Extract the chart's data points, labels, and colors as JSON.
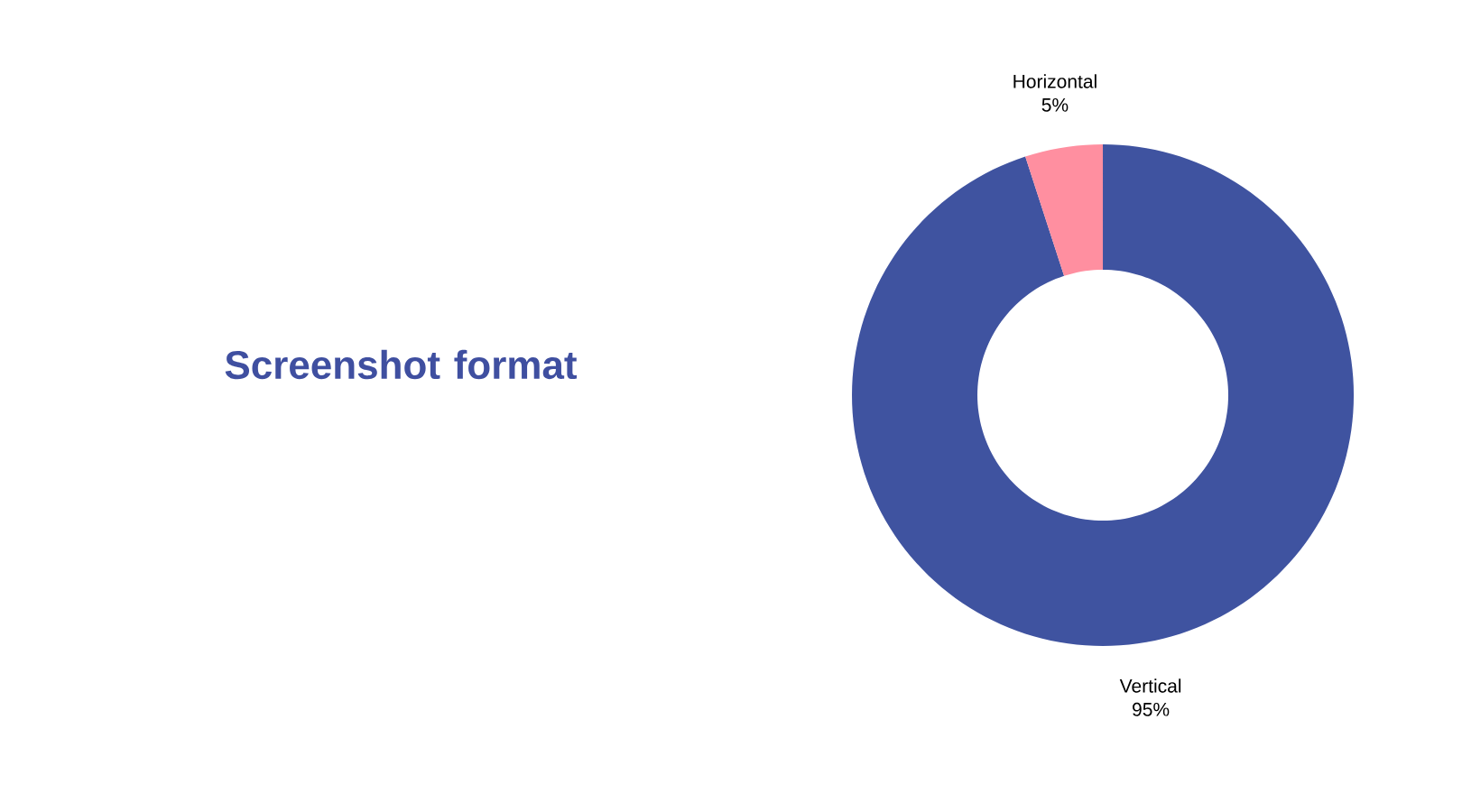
{
  "chart_data": {
    "type": "donut",
    "title": "Screenshot format",
    "categories": [
      "Vertical",
      "Horizontal"
    ],
    "values": [
      95,
      5
    ],
    "value_labels": [
      "95%",
      "5%"
    ],
    "colors": [
      "#3f53a0",
      "#ff8fa0"
    ]
  }
}
